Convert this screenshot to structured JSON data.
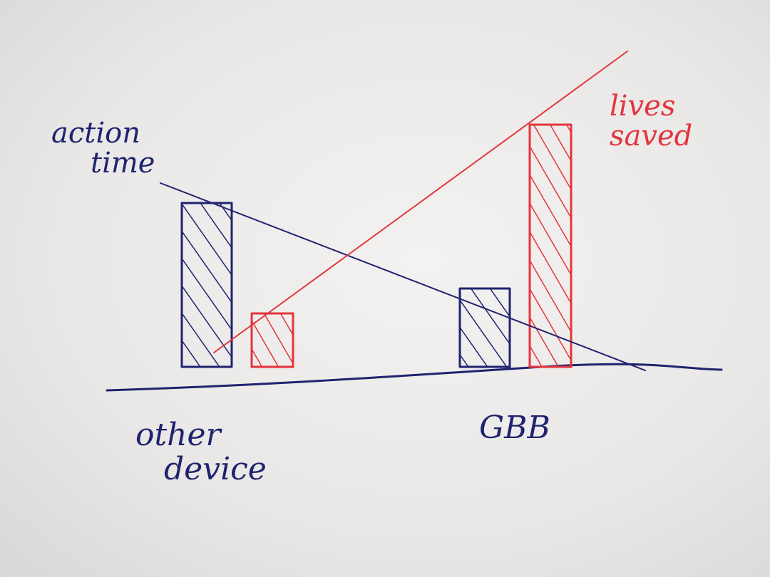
{
  "chart_data": {
    "type": "bar",
    "categories": [
      "other device",
      "GBB"
    ],
    "series": [
      {
        "name": "action time",
        "values": [
          230,
          110
        ],
        "color": "#1f2370"
      },
      {
        "name": "lives saved",
        "values": [
          75,
          340
        ],
        "color": "#e4343d"
      }
    ],
    "trend_lines": [
      {
        "series": "action time",
        "from_category": "other device",
        "to_category": "GBB",
        "trend": "decreasing"
      },
      {
        "series": "lives saved",
        "from_category": "other device",
        "to_category": "GBB",
        "trend": "increasing"
      }
    ],
    "legend_placement": "inline",
    "grid": false,
    "title": "",
    "xlabel": "",
    "ylabel": "",
    "style": "hand-drawn sketch on paper"
  }
}
